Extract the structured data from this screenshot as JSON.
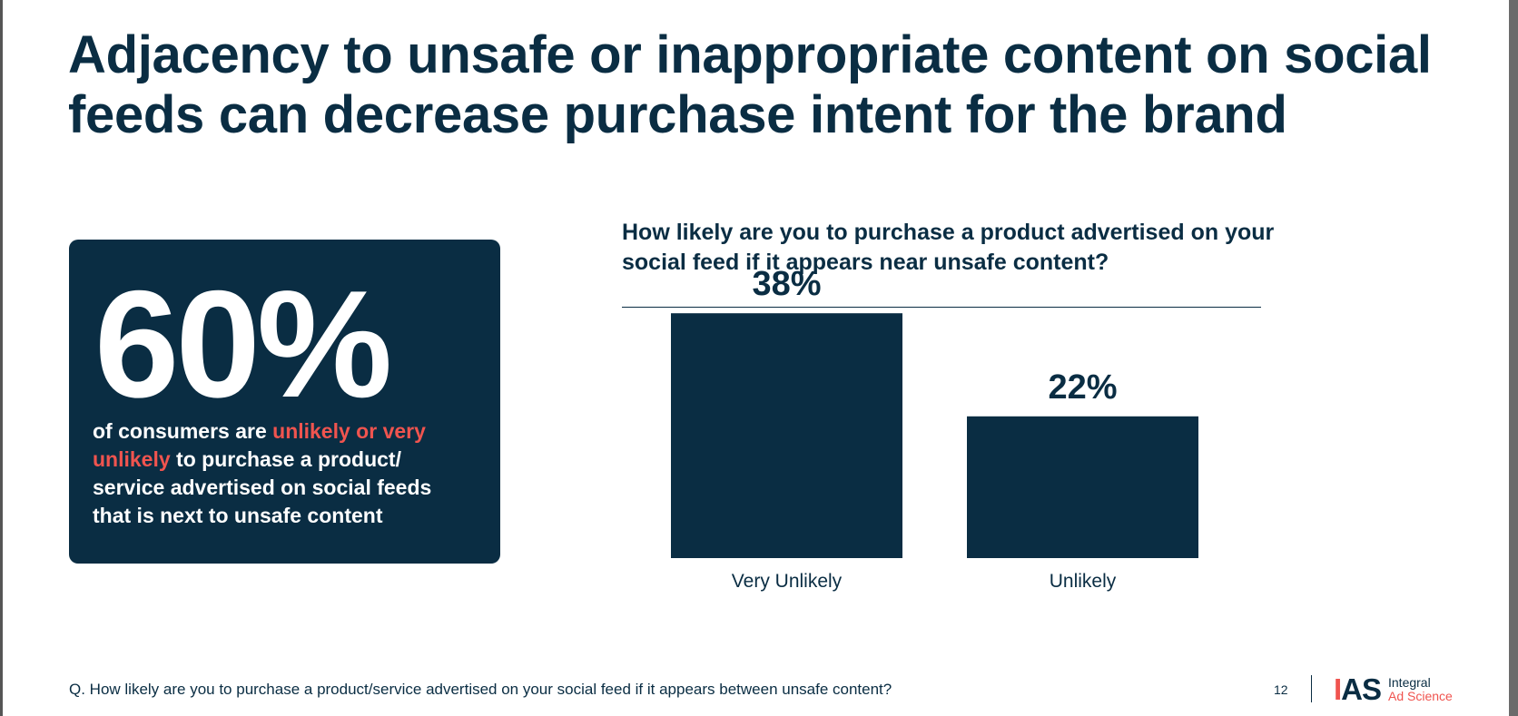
{
  "slide": {
    "title": "Adjacency to unsafe or inappropriate content on social feeds can decrease purchase intent for the brand"
  },
  "stat": {
    "value": "60%",
    "desc_before": "of consumers are ",
    "desc_highlight": "unlikely or very unlikely",
    "desc_after": " to purchase a product/ service advertised on social feeds that is next to unsafe content"
  },
  "footer": {
    "footnote": "Q. How likely are you to purchase a product/service advertised on your social feed if it appears between unsafe content?",
    "page_number": "12",
    "logo_mark_i": "I",
    "logo_mark_as": "AS",
    "logo_line1": "Integral",
    "logo_line2": "Ad Science"
  },
  "colors": {
    "navy": "#0a2d43",
    "accent": "#f0544f"
  },
  "chart_data": {
    "type": "bar",
    "title": "How likely are you to purchase a product advertised on your social feed if it appears near unsafe content?",
    "categories": [
      "Very Unlikely",
      "Unlikely"
    ],
    "values": [
      38,
      22
    ],
    "data_labels": [
      "38%",
      "22%"
    ],
    "xlabel": "",
    "ylabel": "",
    "ylim": [
      0,
      100
    ],
    "grid": false,
    "legend": "none"
  }
}
